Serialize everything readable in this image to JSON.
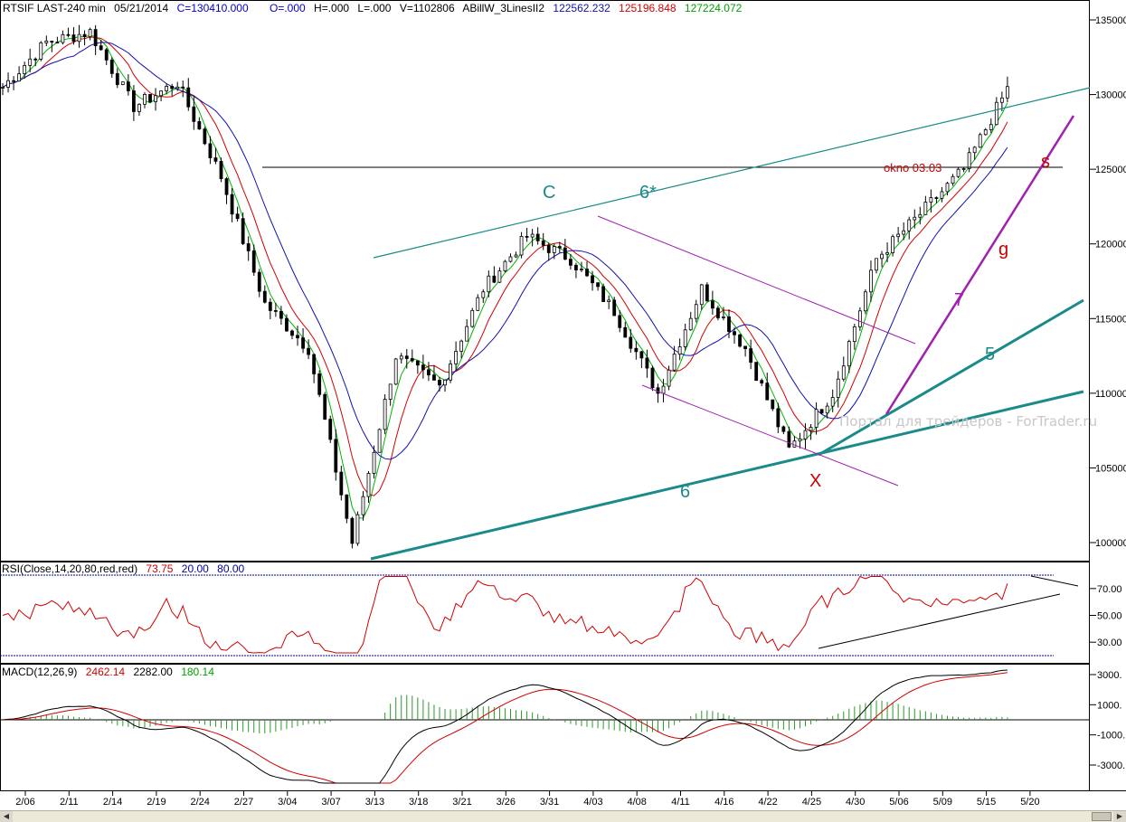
{
  "header": {
    "symbol": "RTSIF LAST-240 min",
    "date": "05/21/2014",
    "close": "C=130410.000",
    "open": "O=.000",
    "high": "H=.000",
    "low": "L=.000",
    "volume": "V=1102806",
    "indicator": "ABillW_3LinesII2",
    "line1": "122562.232",
    "line2": "125196.848",
    "line3": "127224.072"
  },
  "colors": {
    "candle": "#000000",
    "ma_green": "#00b400",
    "ma_red": "#d00000",
    "ma_blue": "#1010b0",
    "trend_teal": "#1a8a8a",
    "channel_purple": "#a020b0",
    "wave_red": "#cc0000",
    "rsi_line": "#d00000",
    "rsi_levels": "#0000a0",
    "macd_main": "#000000",
    "macd_signal": "#d00000",
    "macd_hist": "#2a9a2a"
  },
  "watermark": "Портал для трейдеров - ForTrader.ru",
  "annotations": {
    "wave_c": "C",
    "line_6star": "6*",
    "okno": "okno 03.03",
    "wave_s": "s",
    "wave_g": "g",
    "line_7": "7",
    "line_5": "5",
    "line_6": "6",
    "wave_x": "X"
  },
  "rsi": {
    "label": "RSI(Close,14,20,80,red,red)",
    "value": "73.75",
    "low_level": "20.00",
    "high_level": "80.00"
  },
  "macd": {
    "label": "MACD(12,26,9)",
    "v1": "2462.14",
    "v2": "2282.00",
    "v3": "180.14"
  },
  "chart_data": [
    {
      "type": "candlestick",
      "title": "RTSIF LAST-240 min",
      "x_labels": [
        "2/06",
        "2/11",
        "2/14",
        "2/19",
        "2/24",
        "2/27",
        "3/04",
        "3/07",
        "3/13",
        "3/18",
        "3/21",
        "3/26",
        "3/31",
        "4/03",
        "4/08",
        "4/11",
        "4/16",
        "4/22",
        "4/25",
        "4/30",
        "5/06",
        "5/09",
        "5/15",
        "5/20"
      ],
      "y_ticks": [
        10000,
        10500,
        11000,
        11500,
        12000,
        12500,
        13000,
        13500
      ],
      "y_tick_labels": [
        "100000",
        "105000",
        "110000",
        "115000",
        "120000",
        "125000",
        "130000",
        "135000"
      ],
      "ylim": [
        9900,
        13600
      ],
      "approx_close_path": [
        {
          "x": "2/06",
          "close": 13050
        },
        {
          "x": "2/11",
          "close": 13350
        },
        {
          "x": "2/14",
          "close": 13420
        },
        {
          "x": "2/19",
          "close": 12920
        },
        {
          "x": "2/24",
          "close": 13080
        },
        {
          "x": "2/27",
          "close": 12450
        },
        {
          "x": "3/04",
          "close": 11600
        },
        {
          "x": "3/07",
          "close": 11300
        },
        {
          "x": "3/13",
          "close": 10000
        },
        {
          "x": "3/18",
          "close": 11250
        },
        {
          "x": "3/21",
          "close": 11050
        },
        {
          "x": "3/26",
          "close": 11700
        },
        {
          "x": "3/31",
          "close": 12050
        },
        {
          "x": "4/03",
          "close": 11900
        },
        {
          "x": "4/08",
          "close": 11550
        },
        {
          "x": "4/11",
          "close": 11000
        },
        {
          "x": "4/16",
          "close": 11700
        },
        {
          "x": "4/22",
          "close": 11300
        },
        {
          "x": "4/25",
          "close": 10620
        },
        {
          "x": "4/30",
          "close": 11000
        },
        {
          "x": "5/06",
          "close": 11900
        },
        {
          "x": "5/09",
          "close": 12200
        },
        {
          "x": "5/15",
          "close": 12500
        },
        {
          "x": "5/20",
          "close": 13040
        }
      ],
      "horizontal_line": {
        "label": "okno 03.03",
        "value": 12520
      }
    },
    {
      "type": "line",
      "title": "RSI(Close,14,20,80,red,red)",
      "y_tick_labels": [
        "30.00",
        "50.00",
        "70.00"
      ],
      "ylim": [
        10,
        90
      ],
      "levels": [
        20,
        80
      ],
      "current": 73.75
    },
    {
      "type": "line",
      "title": "MACD(12,26,9)",
      "y_tick_labels": [
        "3000.",
        "1000.",
        "-1000.",
        "-3000."
      ],
      "ylim": [
        -4500,
        3600
      ],
      "current": {
        "macd": 2462.14,
        "signal": 2282.0,
        "hist": 180.14
      }
    }
  ]
}
